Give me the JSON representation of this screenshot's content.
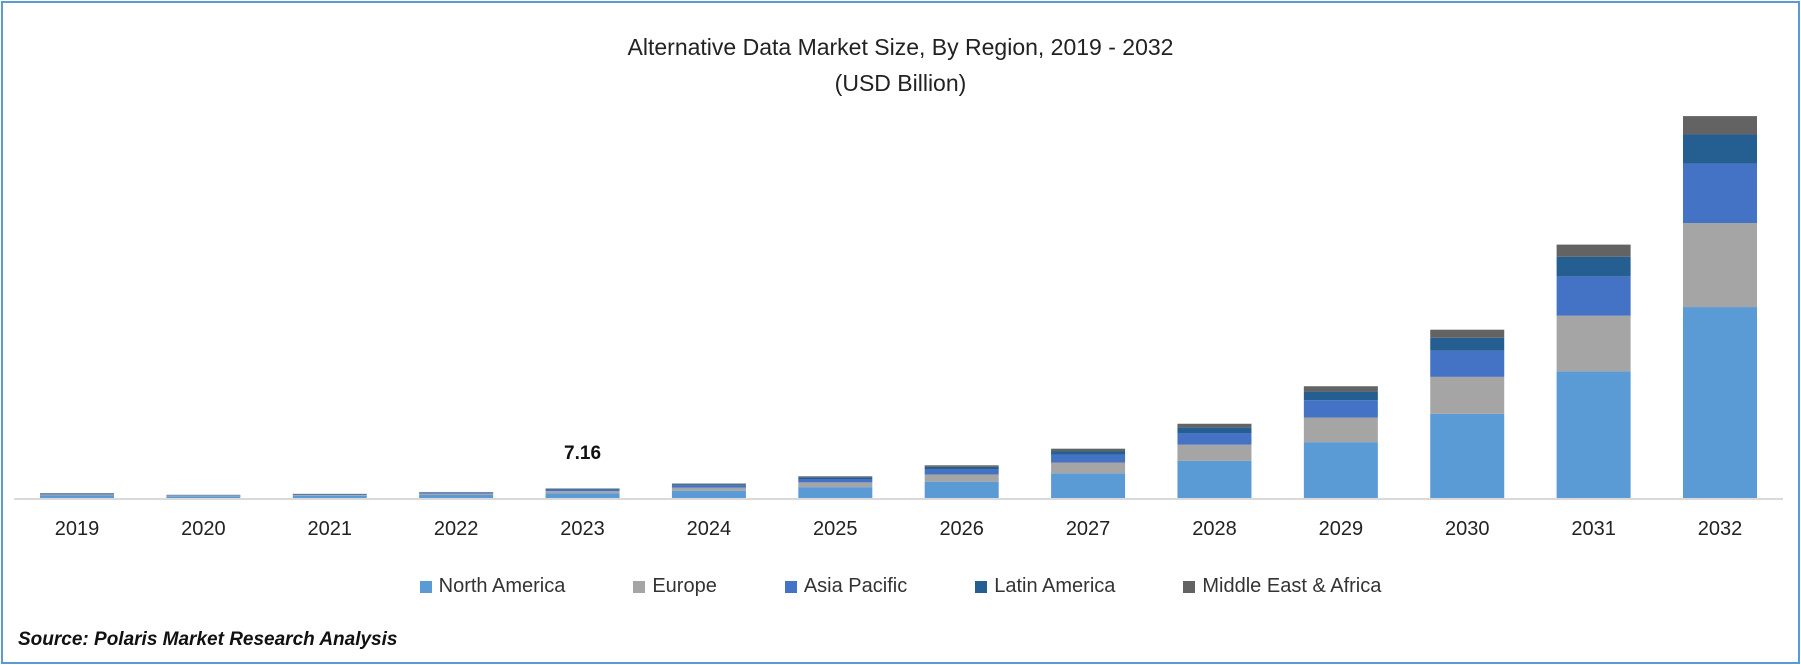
{
  "chart_data": {
    "type": "bar",
    "stacked": true,
    "title": "Alternative Data Market Size, By Region, 2019 - 2032",
    "subtitle": "(USD Billion)",
    "xlabel": "",
    "ylabel": "",
    "ylim": [
      0,
      300
    ],
    "grid": false,
    "legend_position": "bottom",
    "categories": [
      "2019",
      "2020",
      "2021",
      "2022",
      "2023",
      "2024",
      "2025",
      "2026",
      "2027",
      "2028",
      "2029",
      "2030",
      "2031",
      "2032"
    ],
    "series": [
      {
        "name": "North America",
        "color": "#5b9bd5",
        "values": [
          1.85,
          1.2,
          1.55,
          2.25,
          3.58,
          5.4,
          8.1,
          12.2,
          18.4,
          27.7,
          41.7,
          62.8,
          94.5,
          142.5
        ]
      },
      {
        "name": "Europe",
        "color": "#a5a5a5",
        "values": [
          0.81,
          0.53,
          0.68,
          0.99,
          1.58,
          2.38,
          3.56,
          5.37,
          8.1,
          12.19,
          18.35,
          27.6,
          41.6,
          62.7
        ]
      },
      {
        "name": "Asia Pacific",
        "color": "#4472c4",
        "values": [
          0.57,
          0.37,
          0.48,
          0.7,
          1.11,
          1.67,
          2.51,
          3.78,
          5.7,
          8.59,
          12.93,
          19.5,
          29.3,
          44.2
        ]
      },
      {
        "name": "Latin America",
        "color": "#255e91",
        "values": [
          0.28,
          0.18,
          0.24,
          0.35,
          0.55,
          0.83,
          1.25,
          1.88,
          2.83,
          4.27,
          6.42,
          9.7,
          14.6,
          21.9
        ]
      },
      {
        "name": "Middle East & Africa",
        "color": "#636363",
        "values": [
          0.19,
          0.12,
          0.15,
          0.21,
          0.34,
          0.52,
          0.78,
          1.17,
          1.77,
          2.66,
          4.0,
          6.0,
          9.1,
          13.7
        ]
      }
    ],
    "annotations": [
      {
        "category": "2023",
        "text": "7.16"
      }
    ]
  },
  "source": "Source: Polaris Market Research Analysis"
}
